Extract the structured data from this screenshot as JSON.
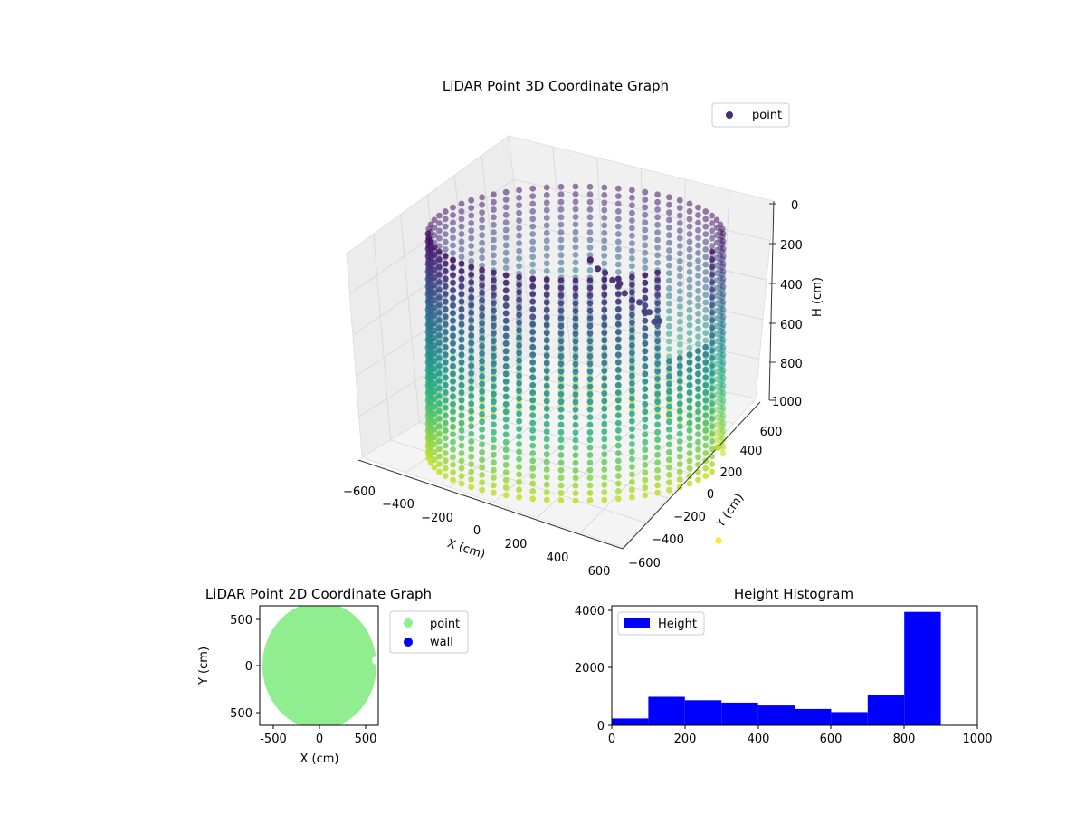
{
  "chart_data": [
    {
      "type": "scatter",
      "subtype": "scatter3d",
      "title": "LiDAR Point 3D Coordinate Graph",
      "xlabel": "X (cm)",
      "ylabel": "Y (cm)",
      "zlabel": "H (cm)",
      "xlim": [
        -600,
        600
      ],
      "ylim": [
        -600,
        600
      ],
      "zlim": [
        0,
        1000
      ],
      "z_inverted": true,
      "xticks": [
        "−600",
        "−400",
        "−200",
        "0",
        "200",
        "400",
        "600"
      ],
      "yticks": [
        "−600",
        "−400",
        "−200",
        "0",
        "200",
        "400",
        "600"
      ],
      "zticks": [
        "0",
        "200",
        "400",
        "600",
        "800",
        "1000"
      ],
      "legend": {
        "position": "top-right",
        "entries": [
          {
            "name": "point",
            "color": "#472c7a"
          }
        ]
      },
      "colormap": "viridis",
      "series": [
        {
          "name": "point",
          "shape": "cylindrical wall sampled in vertical columns",
          "radius_cm": 600,
          "height_range_cm": [
            0,
            900
          ]
        },
        {
          "name": "",
          "shape": "inner scattered cluster",
          "points": [
            {
              "x": 60,
              "y": -40,
              "z": 120
            },
            {
              "x": 90,
              "y": -20,
              "z": 150
            },
            {
              "x": 120,
              "y": -60,
              "z": 180
            },
            {
              "x": 150,
              "y": -30,
              "z": 200
            },
            {
              "x": 180,
              "y": -80,
              "z": 230
            },
            {
              "x": 200,
              "y": -50,
              "z": 260
            },
            {
              "x": 230,
              "y": -20,
              "z": 280
            },
            {
              "x": 260,
              "y": -60,
              "z": 300
            },
            {
              "x": 280,
              "y": -40,
              "z": 330
            },
            {
              "x": 300,
              "y": -90,
              "z": 350
            },
            {
              "x": 320,
              "y": -30,
              "z": 370
            },
            {
              "x": 340,
              "y": -70,
              "z": 380
            }
          ]
        },
        {
          "name": "",
          "shape": "outlier points",
          "points": [
            {
              "x": 420,
              "y": 500,
              "z": 900,
              "color": "#b5de2b"
            },
            {
              "x": 560,
              "y": -480,
              "z": 1000,
              "color": "#fde725"
            }
          ]
        }
      ]
    },
    {
      "type": "scatter",
      "title": "LiDAR Point 2D Coordinate Graph",
      "xlabel": "X (cm)",
      "ylabel": "Y (cm)",
      "xlim": [
        -620,
        620
      ],
      "ylim": [
        -620,
        620
      ],
      "xticks": [
        -500,
        0,
        500
      ],
      "yticks": [
        -500,
        0,
        500
      ],
      "legend": {
        "position": "outside-right",
        "entries": [
          {
            "name": "point",
            "color": "#90ee90"
          },
          {
            "name": "wall",
            "color": "#0000ff"
          }
        ]
      },
      "series": [
        {
          "name": "point",
          "color": "#90ee90",
          "shape": "filled disc",
          "center": [
            0,
            0
          ],
          "radius_cm": 600
        },
        {
          "name": "wall",
          "color": "#0000ff",
          "points": []
        }
      ]
    },
    {
      "type": "bar",
      "subtype": "histogram",
      "title": "Height Histogram",
      "xlabel": "",
      "ylabel": "",
      "xlim": [
        0,
        1000
      ],
      "ylim": [
        0,
        4150
      ],
      "xticks": [
        0,
        200,
        400,
        600,
        800,
        1000
      ],
      "yticks": [
        0,
        2000,
        4000
      ],
      "color": "#0000ff",
      "legend": {
        "position": "top-left",
        "entries": [
          {
            "name": "Height",
            "color": "#0000ff"
          }
        ]
      },
      "bins": [
        {
          "from": 0,
          "to": 100,
          "count": 240
        },
        {
          "from": 100,
          "to": 200,
          "count": 990
        },
        {
          "from": 200,
          "to": 300,
          "count": 870
        },
        {
          "from": 300,
          "to": 400,
          "count": 790
        },
        {
          "from": 400,
          "to": 500,
          "count": 690
        },
        {
          "from": 500,
          "to": 600,
          "count": 570
        },
        {
          "from": 600,
          "to": 700,
          "count": 460
        },
        {
          "from": 700,
          "to": 800,
          "count": 1040
        },
        {
          "from": 800,
          "to": 900,
          "count": 3940
        }
      ]
    }
  ]
}
